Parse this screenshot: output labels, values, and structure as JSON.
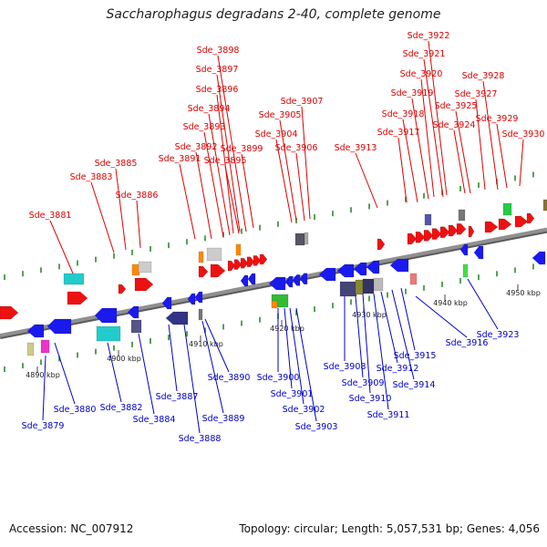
{
  "title": "Saccharophagus degradans 2-40, complete genome",
  "footer": {
    "accession": "Accession: NC_007912",
    "summary": "Topology: circular; Length: 5,057,531 bp; Genes: 4,056"
  },
  "colors": {
    "forward_label": "#dd0000",
    "reverse_label": "#0000cc",
    "backbone": "#909090",
    "tick": "#2a8a2a"
  },
  "scale_labels": [
    "4890 kbp",
    "4900 kbp",
    "4910 kbp",
    "4920 kbp",
    "4930 kbp",
    "4940 kbp",
    "4950 kbp"
  ],
  "forward_genes": [
    "Sde_3881",
    "Sde_3883",
    "Sde_3885",
    "Sde_3886",
    "Sde_3891",
    "Sde_3892",
    "Sde_3893",
    "Sde_3894",
    "Sde_3895",
    "Sde_3896",
    "Sde_3897",
    "Sde_3898",
    "Sde_3899",
    "Sde_3904",
    "Sde_3905",
    "Sde_3906",
    "Sde_3907",
    "Sde_3913",
    "Sde_3917",
    "Sde_3918",
    "Sde_3919",
    "Sde_3920",
    "Sde_3921",
    "Sde_3922",
    "Sde_3924",
    "Sde_3925",
    "Sde_3927",
    "Sde_3928",
    "Sde_3929",
    "Sde_3930"
  ],
  "reverse_genes": [
    "Sde_3879",
    "Sde_3880",
    "Sde_3882",
    "Sde_3884",
    "Sde_3887",
    "Sde_3888",
    "Sde_3889",
    "Sde_3890",
    "Sde_3900",
    "Sde_3901",
    "Sde_3902",
    "Sde_3903",
    "Sde_3908",
    "Sde_3909",
    "Sde_3910",
    "Sde_3911",
    "Sde_3912",
    "Sde_3914",
    "Sde_3915",
    "Sde_3916",
    "Sde_3923"
  ]
}
